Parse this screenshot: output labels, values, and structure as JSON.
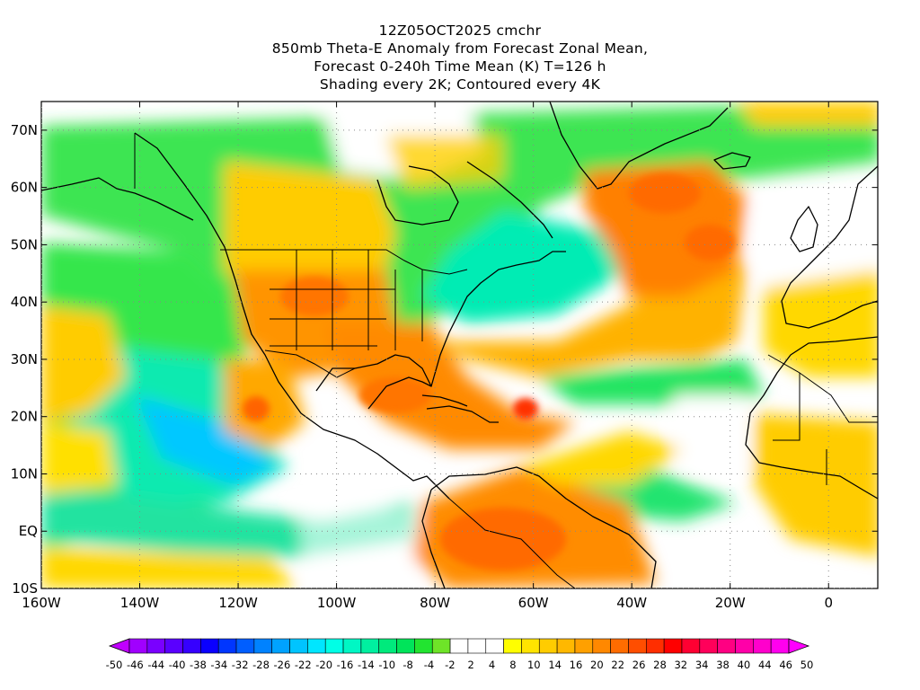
{
  "title": {
    "line1": "12Z05OCT2025 cmchr",
    "line2": "850mb Theta-E Anomaly from Forecast Zonal Mean,",
    "line3": "Forecast 0-240h Time Mean (K) T=126 h",
    "line4": "Shading every 2K; Contoured every 4K"
  },
  "map": {
    "lon_range": [
      -160,
      10
    ],
    "lat_range": [
      -10,
      75
    ],
    "lat_ticks": [
      {
        "value": 70,
        "label": "70N"
      },
      {
        "value": 60,
        "label": "60N"
      },
      {
        "value": 50,
        "label": "50N"
      },
      {
        "value": 40,
        "label": "40N"
      },
      {
        "value": 30,
        "label": "30N"
      },
      {
        "value": 20,
        "label": "20N"
      },
      {
        "value": 10,
        "label": "10N"
      },
      {
        "value": 0,
        "label": "EQ"
      },
      {
        "value": -10,
        "label": "10S"
      }
    ],
    "lon_ticks": [
      {
        "value": -160,
        "label": "160W"
      },
      {
        "value": -140,
        "label": "140W"
      },
      {
        "value": -120,
        "label": "120W"
      },
      {
        "value": -100,
        "label": "100W"
      },
      {
        "value": -80,
        "label": "80W"
      },
      {
        "value": -60,
        "label": "60W"
      },
      {
        "value": -40,
        "label": "40W"
      },
      {
        "value": -20,
        "label": "20W"
      },
      {
        "value": 0,
        "label": "0"
      }
    ]
  },
  "colorbar": {
    "colors": [
      "#a000ff",
      "#7a00ff",
      "#5a00ff",
      "#3600ff",
      "#0a00ff",
      "#0036ff",
      "#005eff",
      "#0082ff",
      "#00a2ff",
      "#00c4ff",
      "#00e6ff",
      "#00ffe6",
      "#00f7c4",
      "#00f0a0",
      "#00ea7c",
      "#00e45a",
      "#22e430",
      "#6ee428",
      "#ffffff",
      "#ffffff",
      "#ffffff",
      "#fffe00",
      "#ffe400",
      "#ffcc00",
      "#ffb800",
      "#ffa000",
      "#ff8800",
      "#ff6c00",
      "#ff4e00",
      "#ff2e00",
      "#ff0000",
      "#ff0032",
      "#ff005a",
      "#ff0082",
      "#ff00a8",
      "#ff00cc",
      "#ff00ee"
    ],
    "labels": [
      "-50",
      "-46",
      "-44",
      "-40",
      "-38",
      "-34",
      "-32",
      "-28",
      "-26",
      "-22",
      "-20",
      "-16",
      "-14",
      "-10",
      "-8",
      "-4",
      "-2",
      "2",
      "4",
      "8",
      "10",
      "14",
      "16",
      "20",
      "22",
      "26",
      "28",
      "32",
      "34",
      "38",
      "40",
      "44",
      "46",
      "50"
    ]
  }
}
